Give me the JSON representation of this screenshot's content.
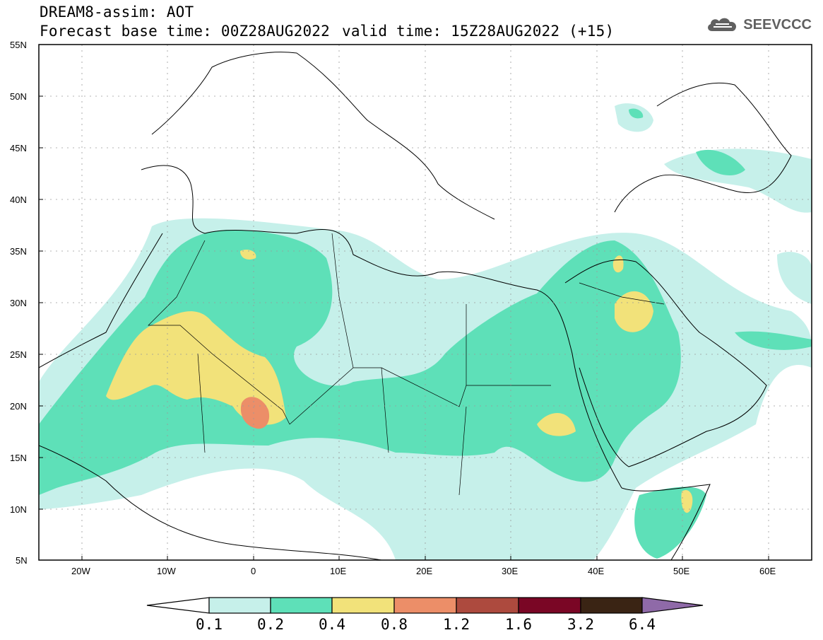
{
  "header": {
    "title": "DREAM8-assim: AOT",
    "base_time": "Forecast base time: 00Z28AUG2022",
    "valid_time": "valid time: 15Z28AUG2022 (+15)",
    "logo_text": "SEEVCCC",
    "logo_icon": "cloud-icon"
  },
  "map": {
    "lon_range": [
      -25,
      65
    ],
    "lat_range": [
      5,
      55
    ],
    "lat_labels": [
      "55N",
      "50N",
      "45N",
      "40N",
      "35N",
      "30N",
      "25N",
      "20N",
      "15N",
      "10N",
      "5N"
    ],
    "lat_values": [
      55,
      50,
      45,
      40,
      35,
      30,
      25,
      20,
      15,
      10,
      5
    ],
    "lon_labels": [
      "20W",
      "10W",
      "0",
      "10E",
      "20E",
      "30E",
      "40E",
      "50E",
      "60E"
    ],
    "lon_values": [
      -20,
      -10,
      0,
      10,
      20,
      30,
      40,
      50,
      60
    ],
    "grid": true,
    "ocean_color": "#ffffff"
  },
  "colorbar": {
    "labels": [
      "0.1",
      "0.2",
      "0.4",
      "0.8",
      "1.2",
      "1.6",
      "3.2",
      "6.4"
    ],
    "colors": [
      "#c6f0ea",
      "#5ee0b8",
      "#f2e27a",
      "#ec8e68",
      "#ad4a3e",
      "#7a0625",
      "#3a2414",
      "#8f6aa8"
    ],
    "below_color": "#ffffff"
  }
}
